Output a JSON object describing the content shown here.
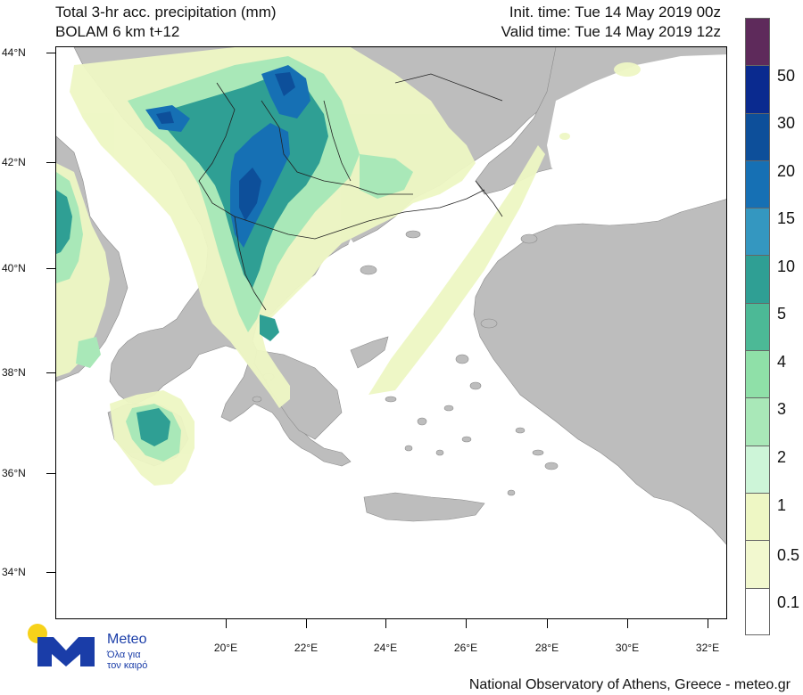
{
  "header": {
    "title_line1": "Total 3-hr acc. precipitation (mm)",
    "title_line2": "BOLAM 6 km t+12",
    "init_time": "Init. time: Tue 14 May 2019 00z",
    "valid_time": "Valid time: Tue 14 May 2019 12z"
  },
  "axes": {
    "lat_labels": [
      "44°N",
      "42°N",
      "40°N",
      "38°N",
      "36°N",
      "34°N"
    ],
    "lon_labels": [
      "20°E",
      "22°E",
      "24°E",
      "26°E",
      "28°E",
      "30°E",
      "32°E"
    ]
  },
  "legend": {
    "labels": [
      "50",
      "30",
      "20",
      "15",
      "10",
      "5",
      "4",
      "3",
      "2",
      "1",
      "0.5",
      "0.1"
    ],
    "colors": [
      "#5e2a5b",
      "#0a2a8f",
      "#0d4f9a",
      "#1670b4",
      "#3497c0",
      "#2f9f94",
      "#4cb996",
      "#8fe0a8",
      "#a9e8b8",
      "#cdf5d8",
      "#eef7c4",
      "#f2f8cf",
      "#ffffff"
    ]
  },
  "logo": {
    "name": "Meteo",
    "tagline_line1": "Όλα για",
    "tagline_line2": "τον καιρό",
    "colors": {
      "blue": "#1a3da8",
      "yellow": "#f7d21a"
    }
  },
  "footer": {
    "credit": "National Observatory of Athens, Greece - meteo.gr"
  },
  "map_colors": {
    "land": "#bdbdbd",
    "sea": "#ffffff",
    "light": "#eef7c4",
    "mid": "#a9e8b8",
    "teal": "#2f9f94",
    "blue": "#1670b4",
    "dark": "#0d4f9a"
  }
}
